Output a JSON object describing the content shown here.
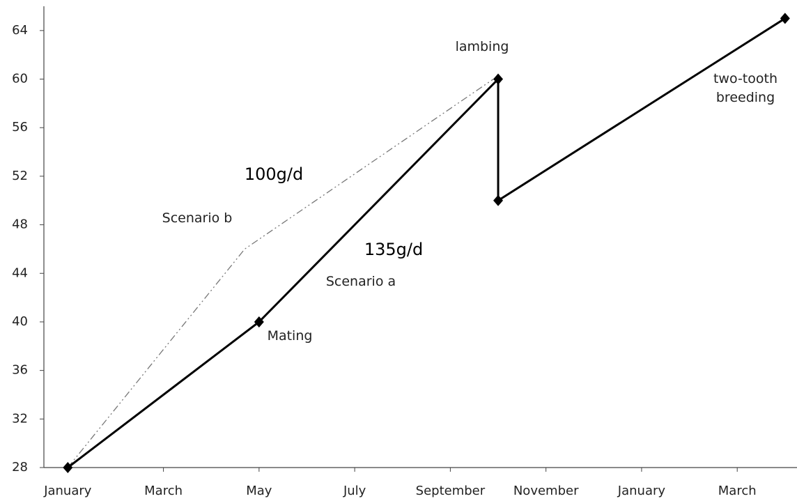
{
  "chart_data": {
    "type": "line",
    "xlim": [
      -0.5,
      15.25
    ],
    "xticks": [
      {
        "value": 0,
        "label": "January"
      },
      {
        "value": 2,
        "label": "March"
      },
      {
        "value": 4,
        "label": "May"
      },
      {
        "value": 6,
        "label": "July"
      },
      {
        "value": 8,
        "label": "September"
      },
      {
        "value": 10,
        "label": "November"
      },
      {
        "value": 12,
        "label": "January"
      },
      {
        "value": 14,
        "label": "March"
      }
    ],
    "ylim": [
      28,
      66
    ],
    "yticks": [
      28,
      32,
      36,
      40,
      44,
      48,
      52,
      56,
      60,
      64
    ],
    "series": [
      {
        "name": "Scenario a",
        "color": "#000000",
        "dash": "solid",
        "marker": "diamond",
        "x": [
          0,
          4,
          9,
          9,
          15
        ],
        "values": [
          28,
          40,
          60,
          50,
          65
        ]
      },
      {
        "name": "Scenario b",
        "color": "#777777",
        "dash": "dash-dot-dot",
        "x": [
          0,
          3.7,
          8.9
        ],
        "values": [
          28,
          46,
          60
        ]
      }
    ],
    "annotations": [
      "lambing",
      "two-tooth breeding",
      "100g/d",
      "135g/d",
      "Mating"
    ]
  }
}
